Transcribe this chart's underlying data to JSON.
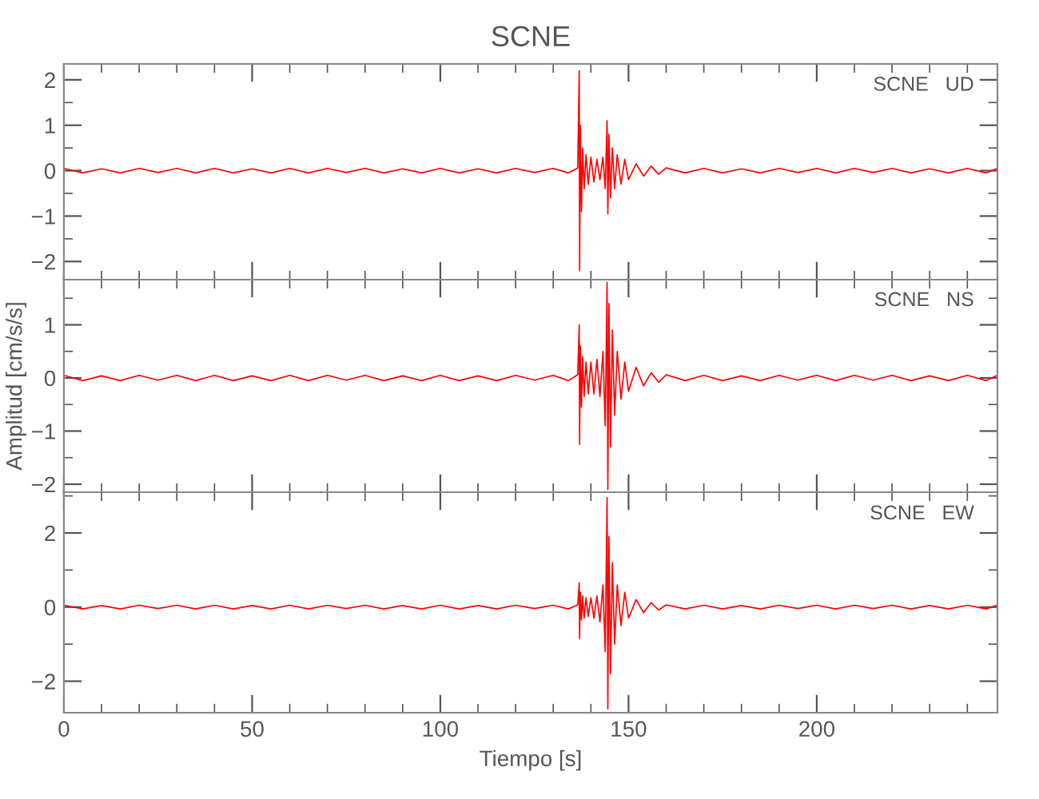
{
  "chart_data": [
    {
      "type": "line",
      "title": "SCNE",
      "annotations": [
        "SCNE   UD"
      ],
      "tick_labels": "y",
      "xlim": [
        0,
        248
      ],
      "ylim": [
        -2.4,
        2.35
      ],
      "xticks": [
        0,
        {
          "value": 10,
          "label": null
        },
        {
          "value": 20,
          "label": null
        },
        {
          "value": 30,
          "label": null
        },
        {
          "value": 40,
          "label": null
        },
        50,
        {
          "value": 60,
          "label": null
        },
        {
          "value": 70,
          "label": null
        },
        {
          "value": 80,
          "label": null
        },
        {
          "value": 90,
          "label": null
        },
        100,
        {
          "value": 110,
          "label": null
        },
        {
          "value": 120,
          "label": null
        },
        {
          "value": 130,
          "label": null
        },
        {
          "value": 140,
          "label": null
        },
        150,
        {
          "value": 160,
          "label": null
        },
        {
          "value": 170,
          "label": null
        },
        {
          "value": 180,
          "label": null
        },
        {
          "value": 190,
          "label": null
        },
        200,
        {
          "value": 210,
          "label": null
        },
        {
          "value": 220,
          "label": null
        },
        {
          "value": 230,
          "label": null
        },
        {
          "value": 240,
          "label": null
        }
      ],
      "yticks": [
        -2,
        {
          "value": -1.5,
          "label": null
        },
        -1,
        {
          "value": -0.5,
          "label": null
        },
        0,
        {
          "value": 0.5,
          "label": null
        },
        1,
        {
          "value": 1.5,
          "label": null
        },
        2
      ],
      "series": [
        {
          "color": "#ff0000",
          "x": [
            0,
            5,
            10,
            15,
            20,
            25,
            30,
            35,
            40,
            45,
            50,
            55,
            60,
            65,
            70,
            75,
            80,
            85,
            90,
            95,
            100,
            105,
            110,
            115,
            120,
            125,
            130,
            134,
            136.5,
            136.9,
            137.0,
            137.2,
            137.5,
            137.8,
            138.2,
            138.7,
            139.3,
            140,
            140.8,
            141.6,
            142.4,
            143.2,
            143.8,
            144.3,
            144.5,
            144.8,
            145.2,
            145.7,
            146.3,
            147,
            148,
            149,
            150,
            152,
            154,
            156,
            158,
            160,
            165,
            170,
            175,
            180,
            185,
            190,
            195,
            200,
            205,
            210,
            215,
            220,
            225,
            230,
            235,
            240,
            245,
            248
          ],
          "values": [
            0.05,
            -0.05,
            0.04,
            -0.05,
            0.05,
            -0.04,
            0.05,
            -0.05,
            0.05,
            -0.05,
            0.04,
            -0.05,
            0.05,
            -0.05,
            0.05,
            -0.04,
            0.05,
            -0.05,
            0.04,
            -0.05,
            0.05,
            -0.05,
            0.04,
            -0.05,
            0.05,
            -0.04,
            0.05,
            -0.05,
            0.06,
            2.2,
            -2.2,
            1.0,
            -0.9,
            0.5,
            -0.4,
            0.35,
            -0.3,
            0.3,
            -0.25,
            0.25,
            -0.2,
            0.3,
            -0.4,
            1.1,
            -0.95,
            0.8,
            -0.6,
            0.5,
            -0.4,
            0.35,
            -0.3,
            0.25,
            -0.2,
            0.15,
            -0.12,
            0.1,
            -0.08,
            0.06,
            -0.05,
            0.05,
            -0.05,
            0.04,
            -0.05,
            0.05,
            -0.04,
            0.05,
            -0.05,
            0.05,
            -0.04,
            0.05,
            -0.05,
            0.04,
            -0.05,
            0.05,
            -0.05,
            0.05
          ]
        }
      ]
    },
    {
      "type": "line",
      "ylabel": "Amplitud [cm/s/s]",
      "annotations": [
        "SCNE   NS"
      ],
      "tick_labels": "y",
      "xlim": [
        0,
        248
      ],
      "ylim": [
        -2.15,
        1.85
      ],
      "xticks": [
        0,
        {
          "value": 10,
          "label": null
        },
        {
          "value": 20,
          "label": null
        },
        {
          "value": 30,
          "label": null
        },
        {
          "value": 40,
          "label": null
        },
        50,
        {
          "value": 60,
          "label": null
        },
        {
          "value": 70,
          "label": null
        },
        {
          "value": 80,
          "label": null
        },
        {
          "value": 90,
          "label": null
        },
        100,
        {
          "value": 110,
          "label": null
        },
        {
          "value": 120,
          "label": null
        },
        {
          "value": 130,
          "label": null
        },
        {
          "value": 140,
          "label": null
        },
        150,
        {
          "value": 160,
          "label": null
        },
        {
          "value": 170,
          "label": null
        },
        {
          "value": 180,
          "label": null
        },
        {
          "value": 190,
          "label": null
        },
        200,
        {
          "value": 210,
          "label": null
        },
        {
          "value": 220,
          "label": null
        },
        {
          "value": 230,
          "label": null
        },
        {
          "value": 240,
          "label": null
        }
      ],
      "yticks": [
        -2,
        {
          "value": -1.5,
          "label": null
        },
        -1,
        {
          "value": -0.5,
          "label": null
        },
        0,
        {
          "value": 0.5,
          "label": null
        },
        1,
        {
          "value": 1.5,
          "label": null
        }
      ],
      "series": [
        {
          "color": "#ff0000",
          "x": [
            0,
            5,
            10,
            15,
            20,
            25,
            30,
            35,
            40,
            45,
            50,
            55,
            60,
            65,
            70,
            75,
            80,
            85,
            90,
            95,
            100,
            105,
            110,
            115,
            120,
            125,
            130,
            134,
            136.5,
            136.9,
            137.0,
            137.2,
            137.5,
            137.8,
            138.2,
            138.7,
            139.3,
            140,
            140.8,
            141.6,
            142.4,
            143.2,
            143.8,
            144.3,
            144.5,
            144.8,
            145.2,
            145.7,
            146.3,
            147,
            148,
            149,
            150,
            152,
            154,
            156,
            158,
            160,
            165,
            170,
            175,
            180,
            185,
            190,
            195,
            200,
            205,
            210,
            215,
            220,
            225,
            230,
            235,
            240,
            245,
            248
          ],
          "values": [
            0.05,
            -0.05,
            0.04,
            -0.05,
            0.05,
            -0.04,
            0.05,
            -0.05,
            0.05,
            -0.05,
            0.04,
            -0.05,
            0.05,
            -0.05,
            0.05,
            -0.04,
            0.05,
            -0.05,
            0.04,
            -0.05,
            0.05,
            -0.05,
            0.04,
            -0.05,
            0.05,
            -0.04,
            0.05,
            -0.05,
            0.06,
            1.0,
            -1.25,
            0.6,
            -0.55,
            0.4,
            -0.35,
            0.3,
            -0.3,
            0.3,
            -0.3,
            0.35,
            -0.35,
            0.5,
            -0.9,
            1.8,
            -2.1,
            1.4,
            -1.3,
            0.9,
            -0.7,
            0.5,
            -0.4,
            0.3,
            -0.25,
            0.2,
            -0.15,
            0.1,
            -0.08,
            0.06,
            -0.05,
            0.05,
            -0.05,
            0.04,
            -0.05,
            0.05,
            -0.04,
            0.05,
            -0.05,
            0.05,
            -0.04,
            0.05,
            -0.05,
            0.04,
            -0.05,
            0.05,
            -0.05,
            0.05
          ]
        }
      ]
    },
    {
      "type": "line",
      "xlabel": "Tiempo [s]",
      "annotations": [
        "SCNE   EW"
      ],
      "xlim": [
        0,
        248
      ],
      "ylim": [
        -2.85,
        3.1
      ],
      "xticks": [
        0,
        {
          "value": 10,
          "label": null
        },
        {
          "value": 20,
          "label": null
        },
        {
          "value": 30,
          "label": null
        },
        {
          "value": 40,
          "label": null
        },
        50,
        {
          "value": 60,
          "label": null
        },
        {
          "value": 70,
          "label": null
        },
        {
          "value": 80,
          "label": null
        },
        {
          "value": 90,
          "label": null
        },
        100,
        {
          "value": 110,
          "label": null
        },
        {
          "value": 120,
          "label": null
        },
        {
          "value": 130,
          "label": null
        },
        {
          "value": 140,
          "label": null
        },
        150,
        {
          "value": 160,
          "label": null
        },
        {
          "value": 170,
          "label": null
        },
        {
          "value": 180,
          "label": null
        },
        {
          "value": 190,
          "label": null
        },
        200,
        {
          "value": 210,
          "label": null
        },
        {
          "value": 220,
          "label": null
        },
        {
          "value": 230,
          "label": null
        },
        {
          "value": 240,
          "label": null
        }
      ],
      "yticks": [
        -2,
        {
          "value": -1,
          "label": null
        },
        0,
        {
          "value": 1,
          "label": null
        },
        2,
        {
          "value": 3,
          "label": null
        }
      ],
      "series": [
        {
          "color": "#ff0000",
          "x": [
            0,
            5,
            10,
            15,
            20,
            25,
            30,
            35,
            40,
            45,
            50,
            55,
            60,
            65,
            70,
            75,
            80,
            85,
            90,
            95,
            100,
            105,
            110,
            115,
            120,
            125,
            130,
            134,
            136.5,
            136.9,
            137.0,
            137.2,
            137.5,
            137.8,
            138.2,
            138.7,
            139.3,
            140,
            140.8,
            141.6,
            142.4,
            143.2,
            143.8,
            144.3,
            144.5,
            144.8,
            145.2,
            145.7,
            146.3,
            147,
            148,
            149,
            150,
            152,
            154,
            156,
            158,
            160,
            165,
            170,
            175,
            180,
            185,
            190,
            195,
            200,
            205,
            210,
            215,
            220,
            225,
            230,
            235,
            240,
            245,
            248
          ],
          "values": [
            0.05,
            -0.05,
            0.04,
            -0.05,
            0.05,
            -0.04,
            0.05,
            -0.05,
            0.05,
            -0.05,
            0.04,
            -0.05,
            0.05,
            -0.05,
            0.05,
            -0.04,
            0.05,
            -0.05,
            0.04,
            -0.05,
            0.05,
            -0.05,
            0.04,
            -0.05,
            0.05,
            -0.04,
            0.05,
            -0.05,
            0.06,
            0.65,
            -0.85,
            0.4,
            -0.35,
            0.3,
            -0.3,
            0.25,
            -0.25,
            0.25,
            -0.3,
            0.3,
            -0.4,
            0.6,
            -1.2,
            2.95,
            -2.75,
            1.9,
            -1.8,
            1.2,
            -1.0,
            0.6,
            -0.5,
            0.4,
            -0.3,
            0.2,
            -0.15,
            0.12,
            -0.08,
            0.06,
            -0.05,
            0.05,
            -0.05,
            0.04,
            -0.05,
            0.05,
            -0.04,
            0.05,
            -0.05,
            0.05,
            -0.04,
            0.05,
            -0.05,
            0.04,
            -0.05,
            0.05,
            -0.05,
            0.05
          ]
        }
      ]
    }
  ]
}
